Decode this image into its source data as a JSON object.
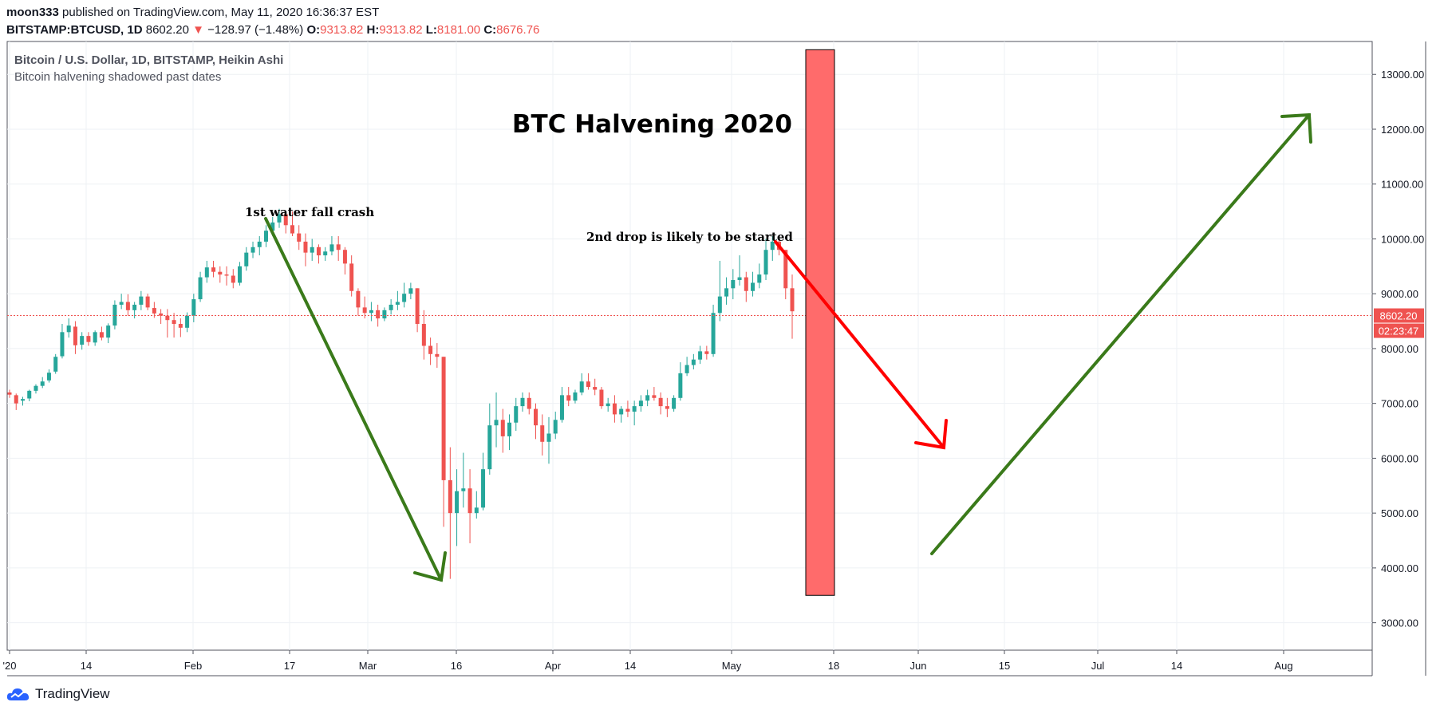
{
  "header": {
    "author": "moon333",
    "published_text": "published on TradingView.com, May 11, 2020 16:36:37 EST",
    "symbol": "BITSTAMP:BTCUSD, 1D",
    "last": "8602.20",
    "change": "−128.97 (−1.48%)",
    "o_label": "O:",
    "o": "9313.82",
    "h_label": "H:",
    "h": "9313.82",
    "l_label": "L:",
    "l": "8181.00",
    "c_label": "C:",
    "c": "8676.76"
  },
  "legend": {
    "title": "Bitcoin / U.S. Dollar, 1D, BITSTAMP, Heikin Ashi",
    "subtitle": "Bitcoin halvening shadowed past dates"
  },
  "footer": {
    "brand": "TradingView"
  },
  "colors": {
    "up": "#26a69a",
    "down": "#ef5350",
    "green_arrow": "#3a7a1a",
    "red_arrow": "#ff0000",
    "halving_box": "#ff6b6b"
  },
  "chart_data": {
    "type": "candlestick",
    "style": "Heikin Ashi",
    "ylim": [
      2500,
      13600
    ],
    "y_ticks": [
      "13000.00",
      "12000.00",
      "11000.00",
      "10000.00",
      "9000.00",
      "8000.00",
      "7000.00",
      "6000.00",
      "5000.00",
      "4000.00",
      "3000.00"
    ],
    "x_ticks": [
      "'20",
      "14",
      "Feb",
      "17",
      "Mar",
      "16",
      "Apr",
      "14",
      "May",
      "18",
      "Jun",
      "15",
      "Jul",
      "14",
      "Aug"
    ],
    "price_line": {
      "value": 8602.2,
      "label": "8602.20",
      "countdown": "02:23:47"
    },
    "annotations": {
      "title": "BTC Halvening 2020",
      "crash1": "1st water fall crash",
      "drop2": "2nd drop is likely to be started"
    },
    "candles": [
      [
        7200,
        7250,
        7100,
        7160
      ],
      [
        7150,
        7180,
        6880,
        7000
      ],
      [
        7050,
        7120,
        6960,
        7080
      ],
      [
        7090,
        7250,
        7040,
        7230
      ],
      [
        7230,
        7350,
        7180,
        7320
      ],
      [
        7320,
        7480,
        7280,
        7400
      ],
      [
        7420,
        7620,
        7380,
        7560
      ],
      [
        7580,
        7900,
        7540,
        7850
      ],
      [
        7860,
        8450,
        7820,
        8300
      ],
      [
        8300,
        8550,
        8200,
        8420
      ],
      [
        8400,
        8500,
        7900,
        8060
      ],
      [
        8070,
        8300,
        7980,
        8230
      ],
      [
        8230,
        8300,
        8050,
        8120
      ],
      [
        8110,
        8330,
        8050,
        8300
      ],
      [
        8300,
        8400,
        8150,
        8200
      ],
      [
        8200,
        8460,
        8100,
        8420
      ],
      [
        8420,
        8880,
        8350,
        8800
      ],
      [
        8800,
        9000,
        8720,
        8850
      ],
      [
        8850,
        8990,
        8600,
        8700
      ],
      [
        8700,
        8850,
        8550,
        8800
      ],
      [
        8800,
        9050,
        8700,
        8950
      ],
      [
        8950,
        9000,
        8700,
        8750
      ],
      [
        8740,
        8850,
        8560,
        8640
      ],
      [
        8640,
        8720,
        8450,
        8600
      ],
      [
        8600,
        8720,
        8200,
        8520
      ],
      [
        8520,
        8650,
        8200,
        8450
      ],
      [
        8450,
        8550,
        8210,
        8380
      ],
      [
        8380,
        8660,
        8300,
        8600
      ],
      [
        8600,
        9000,
        8480,
        8900
      ],
      [
        8900,
        9400,
        8850,
        9300
      ],
      [
        9300,
        9600,
        9200,
        9480
      ],
      [
        9480,
        9600,
        9300,
        9400
      ],
      [
        9400,
        9500,
        9200,
        9350
      ],
      [
        9350,
        9500,
        9150,
        9330
      ],
      [
        9330,
        9450,
        9100,
        9200
      ],
      [
        9200,
        9580,
        9150,
        9500
      ],
      [
        9500,
        9850,
        9420,
        9750
      ],
      [
        9750,
        9950,
        9650,
        9850
      ],
      [
        9850,
        10050,
        9700,
        9950
      ],
      [
        9950,
        10250,
        9850,
        10150
      ],
      [
        10150,
        10400,
        10050,
        10300
      ],
      [
        10300,
        10550,
        10200,
        10450
      ],
      [
        10450,
        10500,
        10100,
        10250
      ],
      [
        10250,
        10500,
        10050,
        10100
      ],
      [
        10100,
        10250,
        9800,
        9950
      ],
      [
        9950,
        10100,
        9500,
        9750
      ],
      [
        9750,
        10000,
        9600,
        9850
      ],
      [
        9850,
        9900,
        9550,
        9700
      ],
      [
        9700,
        9850,
        9600,
        9770
      ],
      [
        9770,
        10050,
        9700,
        9900
      ],
      [
        9900,
        10050,
        9600,
        9800
      ],
      [
        9800,
        9850,
        9350,
        9550
      ],
      [
        9550,
        9700,
        8950,
        9050
      ],
      [
        9050,
        9100,
        8600,
        8750
      ],
      [
        8750,
        8950,
        8550,
        8650
      ],
      [
        8650,
        8850,
        8500,
        8700
      ],
      [
        8700,
        8800,
        8400,
        8550
      ],
      [
        8550,
        8750,
        8500,
        8700
      ],
      [
        8700,
        8900,
        8620,
        8800
      ],
      [
        8800,
        9050,
        8700,
        8850
      ],
      [
        8850,
        9200,
        8750,
        9000
      ],
      [
        9000,
        9200,
        8900,
        9100
      ],
      [
        9100,
        9100,
        8300,
        8450
      ],
      [
        8450,
        8700,
        7800,
        8050
      ],
      [
        8050,
        8200,
        7700,
        7900
      ],
      [
        7900,
        8100,
        7650,
        7850
      ],
      [
        7850,
        7850,
        4750,
        5600
      ],
      [
        5600,
        6200,
        3800,
        5000
      ],
      [
        5000,
        5800,
        4400,
        5400
      ],
      [
        5400,
        6100,
        5100,
        5450
      ],
      [
        5450,
        5800,
        4450,
        5000
      ],
      [
        5000,
        5400,
        4900,
        5100
      ],
      [
        5100,
        6100,
        5050,
        5800
      ],
      [
        5800,
        7000,
        5700,
        6600
      ],
      [
        6600,
        7200,
        6200,
        6700
      ],
      [
        6700,
        6900,
        6100,
        6400
      ],
      [
        6400,
        6800,
        6150,
        6650
      ],
      [
        6650,
        7100,
        6500,
        6950
      ],
      [
        6950,
        7200,
        6850,
        7100
      ],
      [
        7100,
        7200,
        6800,
        6900
      ],
      [
        6900,
        7000,
        6350,
        6600
      ],
      [
        6600,
        6800,
        6050,
        6300
      ],
      [
        6300,
        6750,
        5900,
        6450
      ],
      [
        6450,
        6850,
        6350,
        6700
      ],
      [
        6700,
        7300,
        6650,
        7150
      ],
      [
        7150,
        7300,
        6950,
        7050
      ],
      [
        7050,
        7250,
        7000,
        7200
      ],
      [
        7200,
        7550,
        7150,
        7400
      ],
      [
        7400,
        7550,
        7250,
        7300
      ],
      [
        7300,
        7450,
        7150,
        7250
      ],
      [
        7250,
        7300,
        6900,
        6950
      ],
      [
        6950,
        7100,
        6850,
        7000
      ],
      [
        7000,
        7150,
        6650,
        6800
      ],
      [
        6800,
        6950,
        6650,
        6900
      ],
      [
        6900,
        7050,
        6750,
        6850
      ],
      [
        6850,
        7050,
        6600,
        6950
      ],
      [
        6950,
        7150,
        6850,
        7050
      ],
      [
        7050,
        7250,
        6950,
        7150
      ],
      [
        7150,
        7300,
        7050,
        7100
      ],
      [
        7100,
        7200,
        6800,
        6950
      ],
      [
        6950,
        7100,
        6750,
        6900
      ],
      [
        6900,
        7150,
        6850,
        7100
      ],
      [
        7100,
        7750,
        7050,
        7550
      ],
      [
        7550,
        7850,
        7500,
        7700
      ],
      [
        7700,
        7900,
        7620,
        7800
      ],
      [
        7800,
        8050,
        7720,
        7950
      ],
      [
        7950,
        8050,
        7800,
        7900
      ],
      [
        7900,
        8800,
        7850,
        8650
      ],
      [
        8650,
        9600,
        8500,
        8950
      ],
      [
        8950,
        9300,
        8800,
        9100
      ],
      [
        9100,
        9450,
        8900,
        9250
      ],
      [
        9250,
        9700,
        9150,
        9300
      ],
      [
        9300,
        9400,
        8850,
        9050
      ],
      [
        9050,
        9400,
        8950,
        9200
      ],
      [
        9200,
        9550,
        9100,
        9350
      ],
      [
        9350,
        10000,
        9250,
        9800
      ],
      [
        9800,
        10050,
        9600,
        9950
      ],
      [
        9950,
        10050,
        9700,
        9800
      ],
      [
        9800,
        9800,
        8900,
        9100
      ],
      [
        9100,
        9350,
        8180,
        8680
      ]
    ]
  }
}
